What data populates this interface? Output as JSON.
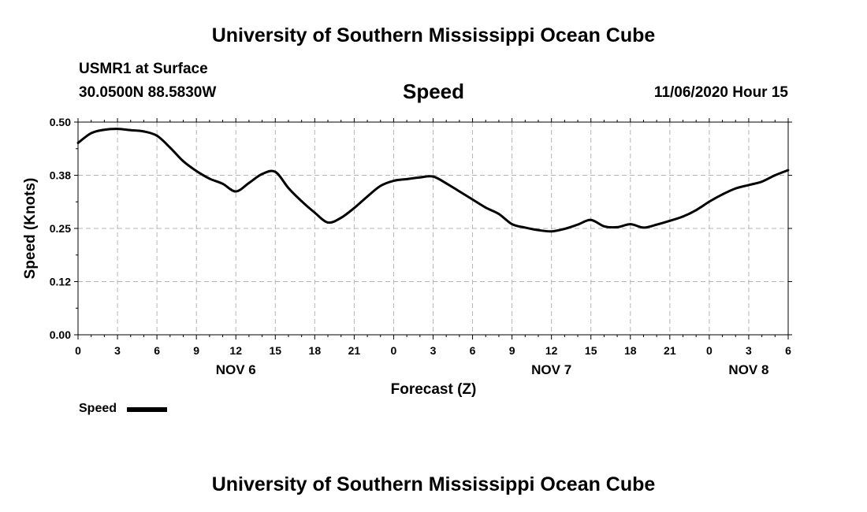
{
  "header": {
    "title_top": "University of Southern Mississippi Ocean Cube",
    "station": "USMR1 at Surface",
    "coords": "30.0500N 88.5830W",
    "center_title": "Speed",
    "timestamp": "11/06/2020 Hour 15"
  },
  "footer": {
    "title_bottom": "University of Southern Mississippi Ocean Cube"
  },
  "chart_data": {
    "type": "line",
    "ylabel": "Speed (Knots)",
    "xlabel": "Forecast (Z)",
    "ylim": [
      0.0,
      0.5
    ],
    "yticks": [
      "0.00",
      "0.12",
      "0.25",
      "0.38",
      "0.50"
    ],
    "yticks_values": [
      0.0,
      0.125,
      0.25,
      0.375,
      0.5
    ],
    "xlim_hours": [
      0,
      54
    ],
    "xticks": [
      "0",
      "3",
      "6",
      "9",
      "12",
      "15",
      "18",
      "21",
      "0",
      "3",
      "6",
      "9",
      "12",
      "15",
      "18",
      "21",
      "0",
      "3",
      "6"
    ],
    "day_labels": [
      {
        "label": "NOV 6",
        "hour": 12
      },
      {
        "label": "NOV 7",
        "hour": 36
      },
      {
        "label": "NOV 8",
        "hour": 51
      }
    ],
    "grid": true,
    "legend": {
      "position": "bottom-left",
      "label": "Speed"
    },
    "series": [
      {
        "name": "Speed",
        "color": "#000000",
        "x": [
          0,
          1,
          2,
          3,
          4,
          5,
          6,
          7,
          8,
          9,
          10,
          11,
          12,
          13,
          14,
          15,
          16,
          17,
          18,
          19,
          20,
          21,
          22,
          23,
          24,
          25,
          26,
          27,
          28,
          29,
          30,
          31,
          32,
          33,
          34,
          35,
          36,
          37,
          38,
          39,
          40,
          41,
          42,
          43,
          44,
          45,
          46,
          47,
          48,
          49,
          50,
          51,
          52,
          53,
          54
        ],
        "values": [
          0.451,
          0.474,
          0.482,
          0.484,
          0.481,
          0.478,
          0.468,
          0.44,
          0.408,
          0.385,
          0.367,
          0.355,
          0.337,
          0.357,
          0.378,
          0.383,
          0.345,
          0.314,
          0.287,
          0.264,
          0.275,
          0.298,
          0.325,
          0.35,
          0.362,
          0.366,
          0.37,
          0.372,
          0.356,
          0.337,
          0.318,
          0.299,
          0.284,
          0.26,
          0.252,
          0.246,
          0.243,
          0.249,
          0.259,
          0.27,
          0.255,
          0.253,
          0.26,
          0.252,
          0.259,
          0.268,
          0.278,
          0.293,
          0.313,
          0.33,
          0.344,
          0.352,
          0.36,
          0.375,
          0.387
        ]
      }
    ]
  }
}
